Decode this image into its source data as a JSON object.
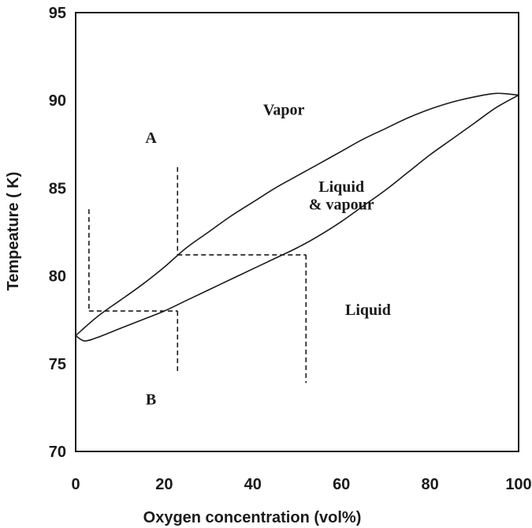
{
  "chart_data": {
    "type": "line",
    "xlabel": "Oxygen concentration (vol%)",
    "ylabel": "Tempeature ( K)",
    "xlim": [
      0,
      100
    ],
    "ylim": [
      70,
      95
    ],
    "x_ticks": [
      "0",
      "20",
      "40",
      "60",
      "80",
      "100"
    ],
    "y_ticks": [
      "70",
      "75",
      "80",
      "85",
      "90",
      "95"
    ],
    "grid": false,
    "series": [
      {
        "role": "dew-point-curve",
        "points": [
          [
            0,
            76.6
          ],
          [
            5,
            77.7
          ],
          [
            10,
            78.6
          ],
          [
            15,
            79.5
          ],
          [
            20,
            80.5
          ],
          [
            25,
            81.6
          ],
          [
            30,
            82.5
          ],
          [
            35,
            83.4
          ],
          [
            40,
            84.2
          ],
          [
            45,
            85.0
          ],
          [
            50,
            85.7
          ],
          [
            55,
            86.4
          ],
          [
            60,
            87.1
          ],
          [
            65,
            87.8
          ],
          [
            70,
            88.4
          ],
          [
            75,
            89.0
          ],
          [
            80,
            89.5
          ],
          [
            85,
            89.9
          ],
          [
            90,
            90.2
          ],
          [
            95,
            90.4
          ],
          [
            100,
            90.3
          ]
        ]
      },
      {
        "role": "bubble-point-curve",
        "points": [
          [
            0,
            76.6
          ],
          [
            2,
            76.3
          ],
          [
            5,
            76.5
          ],
          [
            10,
            77.0
          ],
          [
            15,
            77.5
          ],
          [
            20,
            78.0
          ],
          [
            25,
            78.6
          ],
          [
            30,
            79.2
          ],
          [
            35,
            79.8
          ],
          [
            40,
            80.4
          ],
          [
            45,
            81.0
          ],
          [
            50,
            81.6
          ],
          [
            55,
            82.3
          ],
          [
            60,
            83.1
          ],
          [
            65,
            84.0
          ],
          [
            70,
            84.9
          ],
          [
            75,
            85.9
          ],
          [
            80,
            86.9
          ],
          [
            85,
            87.8
          ],
          [
            90,
            88.7
          ],
          [
            95,
            89.6
          ],
          [
            100,
            90.3
          ]
        ]
      }
    ],
    "construction_lines": [
      {
        "from": [
          3,
          83.8
        ],
        "to": [
          3,
          78.0
        ]
      },
      {
        "from": [
          3,
          78.0
        ],
        "to": [
          23,
          78.0
        ]
      },
      {
        "from": [
          23,
          78.0
        ],
        "to": [
          23,
          74.5
        ]
      },
      {
        "from": [
          23,
          86.2
        ],
        "to": [
          23,
          81.2
        ]
      },
      {
        "from": [
          23,
          81.2
        ],
        "to": [
          52,
          81.2
        ]
      },
      {
        "from": [
          52,
          81.2
        ],
        "to": [
          52,
          73.9
        ]
      }
    ],
    "annotations": [
      {
        "text": "Vapor",
        "x": 47,
        "y": 89.5
      },
      {
        "text": "A",
        "x": 17,
        "y": 87.9
      },
      {
        "text": "Liquid",
        "x": 60,
        "y": 85.1
      },
      {
        "text": "& vapour",
        "x": 60,
        "y": 84.1
      },
      {
        "text": "Liquid",
        "x": 66,
        "y": 78.1
      },
      {
        "text": "B",
        "x": 17,
        "y": 73.0
      }
    ]
  }
}
